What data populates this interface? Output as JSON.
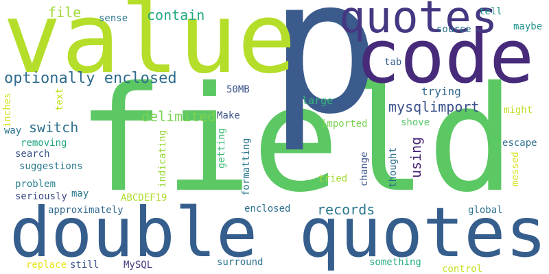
{
  "words": [
    {
      "text": "field",
      "color": "#5cc863"
    },
    {
      "text": "p",
      "color": "#3b5b8c"
    },
    {
      "text": "value",
      "color": "#b5de2b"
    },
    {
      "text": "code",
      "color": "#472a7a"
    },
    {
      "text": "double quotes",
      "color": "#355e8d"
    },
    {
      "text": "quotes",
      "color": "#453781"
    },
    {
      "text": "optionally enclosed",
      "color": "#2f6c8e"
    },
    {
      "text": "file",
      "color": "#a2da37"
    },
    {
      "text": "contain",
      "color": "#22a884"
    },
    {
      "text": "sense",
      "color": "#2a788e"
    },
    {
      "text": "tell",
      "color": "#21918c"
    },
    {
      "text": "source",
      "color": "#2c728e"
    },
    {
      "text": "maybe",
      "color": "#20928c"
    },
    {
      "text": "tab",
      "color": "#355e8d"
    },
    {
      "text": "50MB",
      "color": "#3b518b"
    },
    {
      "text": "trying",
      "color": "#31688e"
    },
    {
      "text": "large",
      "color": "#35b779"
    },
    {
      "text": "delimited",
      "color": "#7ad151"
    },
    {
      "text": "mysqlimport",
      "color": "#3b528b"
    },
    {
      "text": "switch",
      "color": "#2d708e"
    },
    {
      "text": "Make",
      "color": "#3b528b"
    },
    {
      "text": "might",
      "color": "#bddf26"
    },
    {
      "text": "imported",
      "color": "#7ad151"
    },
    {
      "text": "shove",
      "color": "#56c667"
    },
    {
      "text": "escape",
      "color": "#2e6e8e"
    },
    {
      "text": "text",
      "color": "#c2df23"
    },
    {
      "text": "inches",
      "color": "#d2e21b"
    },
    {
      "text": "way",
      "color": "#2c728e"
    },
    {
      "text": "removing",
      "color": "#22a884"
    },
    {
      "text": "search",
      "color": "#3b528b"
    },
    {
      "text": "suggestions",
      "color": "#2a788e"
    },
    {
      "text": "problem",
      "color": "#27808e"
    },
    {
      "text": "seriously",
      "color": "#3e4989"
    },
    {
      "text": "may",
      "color": "#2a788e"
    },
    {
      "text": "ABCDEF19",
      "color": "#addc30"
    },
    {
      "text": "approximately",
      "color": "#31688e"
    },
    {
      "text": "records",
      "color": "#2a788e"
    },
    {
      "text": "using",
      "color": "#482576"
    },
    {
      "text": "tried",
      "color": "#a5db36"
    },
    {
      "text": "change",
      "color": "#39568c"
    },
    {
      "text": "thought",
      "color": "#2d708e"
    },
    {
      "text": "messed",
      "color": "#d5e21a"
    },
    {
      "text": "global",
      "color": "#2c728e"
    },
    {
      "text": "indicating",
      "color": "#9bd93c"
    },
    {
      "text": "getting",
      "color": "#3dbc74"
    },
    {
      "text": "formatting",
      "color": "#2a788e"
    },
    {
      "text": "enclosed",
      "color": "#2d708e"
    },
    {
      "text": "surround",
      "color": "#2c728e"
    },
    {
      "text": "replace",
      "color": "#e7e419"
    },
    {
      "text": "still",
      "color": "#3b528b"
    },
    {
      "text": "MySQL",
      "color": "#443983"
    },
    {
      "text": "something",
      "color": "#26ad81"
    },
    {
      "text": "control",
      "color": "#c8e020"
    }
  ]
}
